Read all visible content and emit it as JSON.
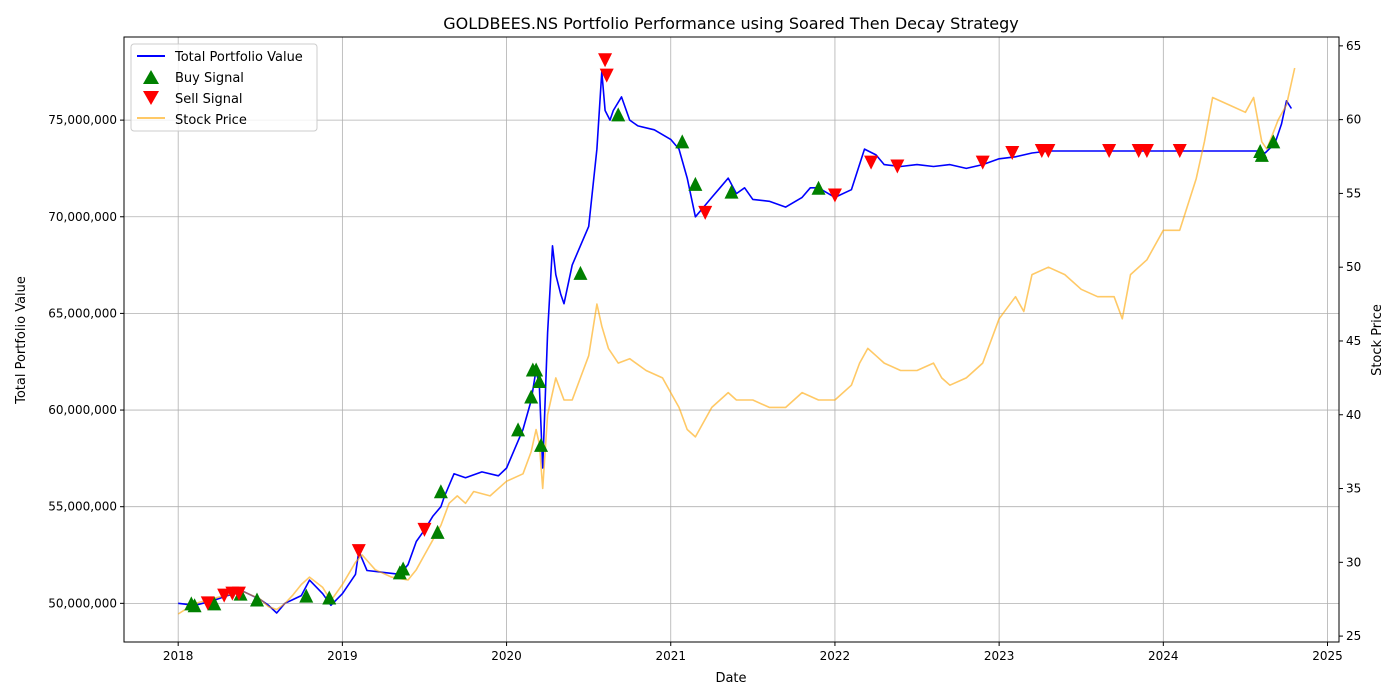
{
  "chart_data": {
    "type": "line",
    "title": "GOLDBEES.NS Portfolio Performance using Soared Then Decay Strategy",
    "xlabel": "Date",
    "ylabel_left": "Total Portfolio Value",
    "ylabel_right": "Stock Price",
    "xlim": [
      2017.67,
      2025.07
    ],
    "ylim_left": [
      48000000,
      79300000
    ],
    "ylim_right": [
      24.6,
      65.6
    ],
    "x_ticks": [
      2018,
      2019,
      2020,
      2021,
      2022,
      2023,
      2024,
      2025
    ],
    "x_tick_labels": [
      "2018",
      "2019",
      "2020",
      "2021",
      "2022",
      "2023",
      "2024",
      "2025"
    ],
    "y_left_ticks": [
      50000000,
      55000000,
      60000000,
      65000000,
      70000000,
      75000000
    ],
    "y_left_tick_labels": [
      "50,000,000",
      "55,000,000",
      "60,000,000",
      "65,000,000",
      "70,000,000",
      "75,000,000"
    ],
    "y_right_ticks": [
      25,
      30,
      35,
      40,
      45,
      50,
      55,
      60,
      65
    ],
    "y_right_tick_labels": [
      "25",
      "30",
      "35",
      "40",
      "45",
      "50",
      "55",
      "60",
      "65"
    ],
    "grid": true,
    "legend_position": "top-left",
    "legend": [
      "Total Portfolio Value",
      "Buy Signal",
      "Sell Signal",
      "Stock Price"
    ],
    "colors": {
      "portfolio": "#0000ff",
      "buy": "#008000",
      "sell": "#ff0000",
      "stock": "#ffa500"
    },
    "series": [
      {
        "name": "Total Portfolio Value",
        "axis": "left",
        "x": [
          2018.0,
          2018.1,
          2018.2,
          2018.3,
          2018.4,
          2018.5,
          2018.55,
          2018.6,
          2018.65,
          2018.7,
          2018.75,
          2018.8,
          2018.88,
          2018.93,
          2019.0,
          2019.08,
          2019.1,
          2019.15,
          2019.25,
          2019.35,
          2019.4,
          2019.45,
          2019.5,
          2019.55,
          2019.6,
          2019.62,
          2019.68,
          2019.75,
          2019.85,
          2019.95,
          2020.0,
          2020.05,
          2020.1,
          2020.15,
          2020.18,
          2020.2,
          2020.22,
          2020.25,
          2020.28,
          2020.3,
          2020.33,
          2020.35,
          2020.4,
          2020.45,
          2020.5,
          2020.55,
          2020.58,
          2020.6,
          2020.63,
          2020.65,
          2020.7,
          2020.75,
          2020.8,
          2020.9,
          2021.0,
          2021.05,
          2021.1,
          2021.15,
          2021.2,
          2021.25,
          2021.3,
          2021.35,
          2021.4,
          2021.45,
          2021.5,
          2021.6,
          2021.7,
          2021.8,
          2021.85,
          2021.9,
          2022.0,
          2022.1,
          2022.18,
          2022.25,
          2022.3,
          2022.4,
          2022.5,
          2022.6,
          2022.7,
          2022.8,
          2022.9,
          2023.0,
          2023.1,
          2023.2,
          2023.3,
          2023.5,
          2023.7,
          2024.0,
          2024.3,
          2024.58,
          2024.62,
          2024.68,
          2024.72,
          2024.75,
          2024.78
        ],
        "values": [
          50000000,
          49900000,
          50100000,
          50400000,
          50600000,
          50200000,
          49900000,
          49500000,
          50000000,
          50200000,
          50400000,
          51200000,
          50500000,
          49900000,
          50500000,
          51500000,
          52700000,
          51700000,
          51600000,
          51500000,
          52000000,
          53200000,
          53800000,
          54500000,
          55000000,
          55500000,
          56700000,
          56500000,
          56800000,
          56600000,
          57000000,
          58000000,
          59000000,
          60500000,
          62100000,
          61200000,
          57000000,
          64000000,
          68500000,
          67000000,
          66000000,
          65500000,
          67500000,
          68500000,
          69500000,
          73500000,
          77500000,
          75500000,
          75000000,
          75500000,
          76200000,
          75000000,
          74700000,
          74500000,
          74000000,
          73500000,
          72000000,
          70000000,
          70500000,
          71000000,
          71500000,
          72000000,
          71200000,
          71500000,
          70900000,
          70800000,
          70500000,
          71000000,
          71500000,
          71500000,
          71000000,
          71400000,
          73500000,
          73200000,
          72700000,
          72600000,
          72700000,
          72600000,
          72700000,
          72500000,
          72700000,
          73000000,
          73100000,
          73300000,
          73400000,
          73400000,
          73400000,
          73400000,
          73400000,
          73400000,
          73300000,
          73800000,
          74800000,
          76000000,
          75600000
        ]
      },
      {
        "name": "Stock Price",
        "axis": "right",
        "x": [
          2018.0,
          2018.1,
          2018.2,
          2018.3,
          2018.4,
          2018.5,
          2018.55,
          2018.6,
          2018.65,
          2018.7,
          2018.75,
          2018.8,
          2018.88,
          2018.93,
          2019.0,
          2019.08,
          2019.12,
          2019.2,
          2019.3,
          2019.4,
          2019.45,
          2019.5,
          2019.55,
          2019.6,
          2019.65,
          2019.7,
          2019.75,
          2019.8,
          2019.9,
          2020.0,
          2020.1,
          2020.15,
          2020.18,
          2020.2,
          2020.22,
          2020.25,
          2020.3,
          2020.35,
          2020.4,
          2020.45,
          2020.5,
          2020.55,
          2020.58,
          2020.62,
          2020.68,
          2020.75,
          2020.85,
          2020.95,
          2021.0,
          2021.05,
          2021.1,
          2021.15,
          2021.2,
          2021.25,
          2021.3,
          2021.35,
          2021.4,
          2021.5,
          2021.6,
          2021.7,
          2021.8,
          2021.9,
          2022.0,
          2022.1,
          2022.15,
          2022.2,
          2022.25,
          2022.3,
          2022.4,
          2022.5,
          2022.6,
          2022.65,
          2022.7,
          2022.8,
          2022.9,
          2023.0,
          2023.1,
          2023.15,
          2023.2,
          2023.3,
          2023.4,
          2023.5,
          2023.6,
          2023.7,
          2023.75,
          2023.8,
          2023.9,
          2024.0,
          2024.1,
          2024.2,
          2024.25,
          2024.3,
          2024.4,
          2024.5,
          2024.55,
          2024.6,
          2024.63,
          2024.7,
          2024.75,
          2024.8
        ],
        "values": [
          26.5,
          27.2,
          27.5,
          27.8,
          28.0,
          27.5,
          27.0,
          26.8,
          27.2,
          27.8,
          28.5,
          29.0,
          28.3,
          27.4,
          28.5,
          30.0,
          30.5,
          29.5,
          29.0,
          28.8,
          29.5,
          30.5,
          31.5,
          32.5,
          34.0,
          34.5,
          34.0,
          34.8,
          34.5,
          35.5,
          36.0,
          37.5,
          39.0,
          38.0,
          35.0,
          40.0,
          42.5,
          41.0,
          41.0,
          42.5,
          44.0,
          47.5,
          46.0,
          44.5,
          43.5,
          43.8,
          43.0,
          42.5,
          41.5,
          40.5,
          39.0,
          38.5,
          39.5,
          40.5,
          41.0,
          41.5,
          41.0,
          41.0,
          40.5,
          40.5,
          41.5,
          41.0,
          41.0,
          42.0,
          43.5,
          44.5,
          44.0,
          43.5,
          43.0,
          43.0,
          43.5,
          42.5,
          42.0,
          42.5,
          43.5,
          46.5,
          48.0,
          47.0,
          49.5,
          50.0,
          49.5,
          48.5,
          48.0,
          48.0,
          46.5,
          49.5,
          50.5,
          52.5,
          52.5,
          56.0,
          58.5,
          61.5,
          61.0,
          60.5,
          61.5,
          58.5,
          58.0,
          60.0,
          61.0,
          63.5
        ]
      }
    ],
    "buy_signals": [
      {
        "x": 2018.08,
        "y": 50000000
      },
      {
        "x": 2018.1,
        "y": 49900000
      },
      {
        "x": 2018.22,
        "y": 50000000
      },
      {
        "x": 2018.38,
        "y": 50500000
      },
      {
        "x": 2018.48,
        "y": 50200000
      },
      {
        "x": 2018.78,
        "y": 50400000
      },
      {
        "x": 2018.92,
        "y": 50300000
      },
      {
        "x": 2019.35,
        "y": 51600000
      },
      {
        "x": 2019.37,
        "y": 51800000
      },
      {
        "x": 2019.58,
        "y": 53700000
      },
      {
        "x": 2019.6,
        "y": 55800000
      },
      {
        "x": 2020.07,
        "y": 59000000
      },
      {
        "x": 2020.15,
        "y": 60700000
      },
      {
        "x": 2020.16,
        "y": 62100000
      },
      {
        "x": 2020.18,
        "y": 62100000
      },
      {
        "x": 2020.2,
        "y": 61500000
      },
      {
        "x": 2020.21,
        "y": 58200000
      },
      {
        "x": 2020.45,
        "y": 67100000
      },
      {
        "x": 2020.68,
        "y": 75300000
      },
      {
        "x": 2021.07,
        "y": 73900000
      },
      {
        "x": 2021.15,
        "y": 71700000
      },
      {
        "x": 2021.37,
        "y": 71300000
      },
      {
        "x": 2021.9,
        "y": 71500000
      },
      {
        "x": 2024.59,
        "y": 73400000
      },
      {
        "x": 2024.6,
        "y": 73200000
      },
      {
        "x": 2024.67,
        "y": 73900000
      }
    ],
    "sell_signals": [
      {
        "x": 2018.18,
        "y": 50000000
      },
      {
        "x": 2018.28,
        "y": 50400000
      },
      {
        "x": 2018.33,
        "y": 50500000
      },
      {
        "x": 2018.37,
        "y": 50500000
      },
      {
        "x": 2019.1,
        "y": 52700000
      },
      {
        "x": 2019.5,
        "y": 53800000
      },
      {
        "x": 2020.6,
        "y": 78100000
      },
      {
        "x": 2020.61,
        "y": 77300000
      },
      {
        "x": 2021.21,
        "y": 70200000
      },
      {
        "x": 2022.0,
        "y": 71100000
      },
      {
        "x": 2022.22,
        "y": 72800000
      },
      {
        "x": 2022.38,
        "y": 72600000
      },
      {
        "x": 2022.9,
        "y": 72800000
      },
      {
        "x": 2023.08,
        "y": 73300000
      },
      {
        "x": 2023.26,
        "y": 73400000
      },
      {
        "x": 2023.3,
        "y": 73400000
      },
      {
        "x": 2023.67,
        "y": 73400000
      },
      {
        "x": 2023.85,
        "y": 73400000
      },
      {
        "x": 2023.9,
        "y": 73400000
      },
      {
        "x": 2024.1,
        "y": 73400000
      }
    ]
  }
}
